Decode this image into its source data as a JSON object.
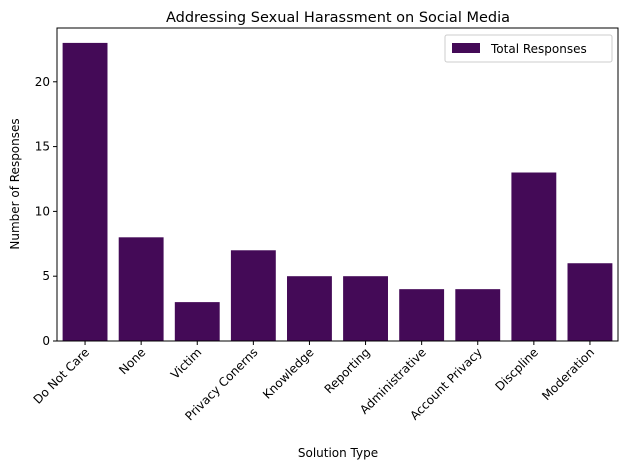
{
  "chart_data": {
    "type": "bar",
    "title": "Addressing Sexual Harassment on Social Media",
    "xlabel": "Solution Type",
    "ylabel": "Number of Responses",
    "categories": [
      "Do Not Care",
      "None",
      "Victim",
      "Privacy Conerns",
      "Knowledge",
      "Reporting",
      "Administrative",
      "Account Privacy",
      "Discpline",
      "Moderation"
    ],
    "series": [
      {
        "name": "Total Responses",
        "values": [
          23,
          8,
          3,
          7,
          5,
          5,
          4,
          4,
          13,
          6
        ],
        "color": "#440a57"
      }
    ],
    "ylim": [
      0,
      24.15
    ],
    "yticks": [
      0,
      5,
      10,
      15,
      20
    ],
    "grid": false,
    "legend_position": "top-right"
  }
}
